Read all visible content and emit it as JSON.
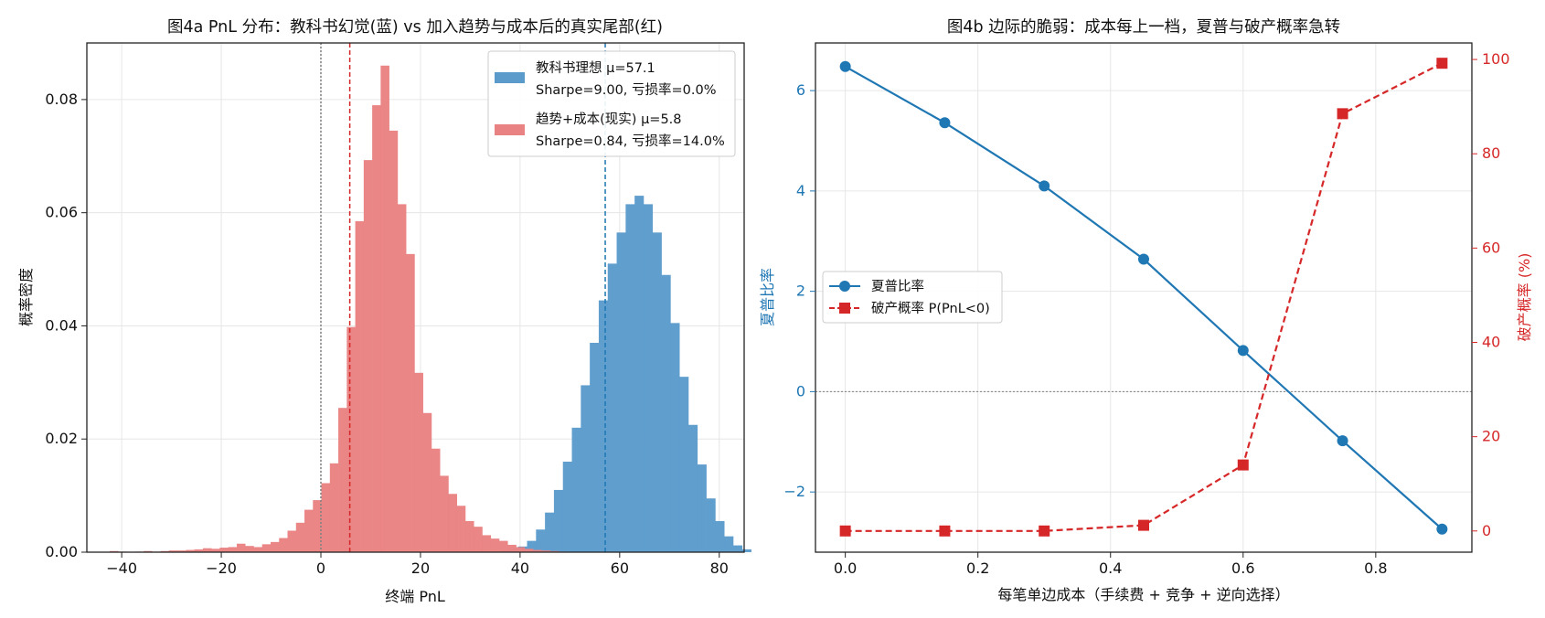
{
  "chart_data": [
    {
      "type": "bar",
      "subtype": "histogram",
      "title": "图4a  PnL 分布：教科书幻觉(蓝) vs 加入趋势与成本后的真实尾部(红)",
      "xlabel": "终端 PnL",
      "ylabel": "概率密度",
      "xlim": [
        -47,
        85
      ],
      "ylim": [
        0,
        0.09
      ],
      "xticks": [
        "−40",
        "−20",
        "0",
        "20",
        "40",
        "60",
        "80"
      ],
      "yticks": [
        "0.00",
        "0.02",
        "0.04",
        "0.06",
        "0.08"
      ],
      "grid": true,
      "legend_position": "top-right",
      "series": [
        {
          "name": "教科书理想  μ=57.1",
          "legend_line2": "Sharpe=9.00, 亏损率=0.0%",
          "color": "#5b9bcc",
          "mean": 57.1,
          "bin_width": 1.8,
          "bin_start": 36.0,
          "values": [
            0.0003,
            0.0006,
            0.001,
            0.002,
            0.004,
            0.007,
            0.011,
            0.016,
            0.022,
            0.0295,
            0.037,
            0.0445,
            0.051,
            0.0565,
            0.0615,
            0.063,
            0.0615,
            0.0565,
            0.049,
            0.0405,
            0.031,
            0.0225,
            0.0155,
            0.0095,
            0.0055,
            0.0028,
            0.0012,
            0.0005
          ]
        },
        {
          "name": "趋势+成本(现实)  μ=5.8",
          "legend_line2": "Sharpe=0.84, 亏损率=14.0%",
          "color": "#e98282",
          "mean": 5.8,
          "bin_width": 1.7,
          "bin_start": -42.4,
          "values": [
            0.0002,
            0.0001,
            0.0,
            0.0001,
            0.0002,
            0.0001,
            0.0002,
            0.0003,
            0.0003,
            0.0004,
            0.0005,
            0.0007,
            0.0006,
            0.0008,
            0.0009,
            0.0015,
            0.0011,
            0.0009,
            0.0014,
            0.0018,
            0.0025,
            0.0038,
            0.0052,
            0.0075,
            0.0092,
            0.0122,
            0.0157,
            0.0255,
            0.0398,
            0.0585,
            0.0693,
            0.079,
            0.086,
            0.0745,
            0.0615,
            0.0527,
            0.0317,
            0.0246,
            0.0183,
            0.0135,
            0.0103,
            0.0082,
            0.0055,
            0.0045,
            0.003,
            0.0024,
            0.002,
            0.0013,
            0.0009,
            0.0006,
            0.0004,
            0.0003,
            0.0002,
            0.0001
          ]
        }
      ],
      "reference_lines": [
        {
          "x": 0,
          "style": "dotted",
          "color": "#808080"
        },
        {
          "x": 5.8,
          "style": "dashed",
          "color": "#d62728"
        },
        {
          "x": 57.1,
          "style": "dashed",
          "color": "#1f77b4"
        }
      ]
    },
    {
      "type": "line",
      "title": "图4b  边际的脆弱：成本每上一档，夏普与破产概率急转",
      "xlabel": "每笔单边成本（手续费 + 竞争 + 逆向选择）",
      "ylabel_left": "夏普比率",
      "ylabel_right": "破产概率 (%)",
      "x": [
        0.0,
        0.15,
        0.3,
        0.45,
        0.6,
        0.75,
        0.9
      ],
      "xlim": [
        -0.045,
        0.945
      ],
      "ylim_left": [
        -3.2,
        6.95
      ],
      "ylim_right": [
        -4.5,
        103.5
      ],
      "xticks": [
        "0.0",
        "0.2",
        "0.4",
        "0.6",
        "0.8"
      ],
      "yticks_left": [
        "−2",
        "0",
        "2",
        "4",
        "6"
      ],
      "yticks_right": [
        "0",
        "20",
        "40",
        "60",
        "80",
        "100"
      ],
      "grid": true,
      "legend_position": "center-left",
      "series": [
        {
          "name": "夏普比率",
          "axis": "left",
          "color": "#1f77b4",
          "marker": "circle",
          "line": "solid",
          "values": [
            6.48,
            5.36,
            4.1,
            2.64,
            0.82,
            -0.98,
            -2.74
          ]
        },
        {
          "name": "破产概率 P(PnL<0)",
          "axis": "right",
          "color": "#d62728",
          "marker": "square",
          "line": "dashed",
          "values": [
            0.0,
            0.0,
            0.0,
            1.2,
            14.0,
            88.5,
            99.2
          ]
        }
      ],
      "reference_lines": [
        {
          "y": 0,
          "axis": "left",
          "style": "dotted",
          "color": "#808080"
        }
      ]
    }
  ]
}
